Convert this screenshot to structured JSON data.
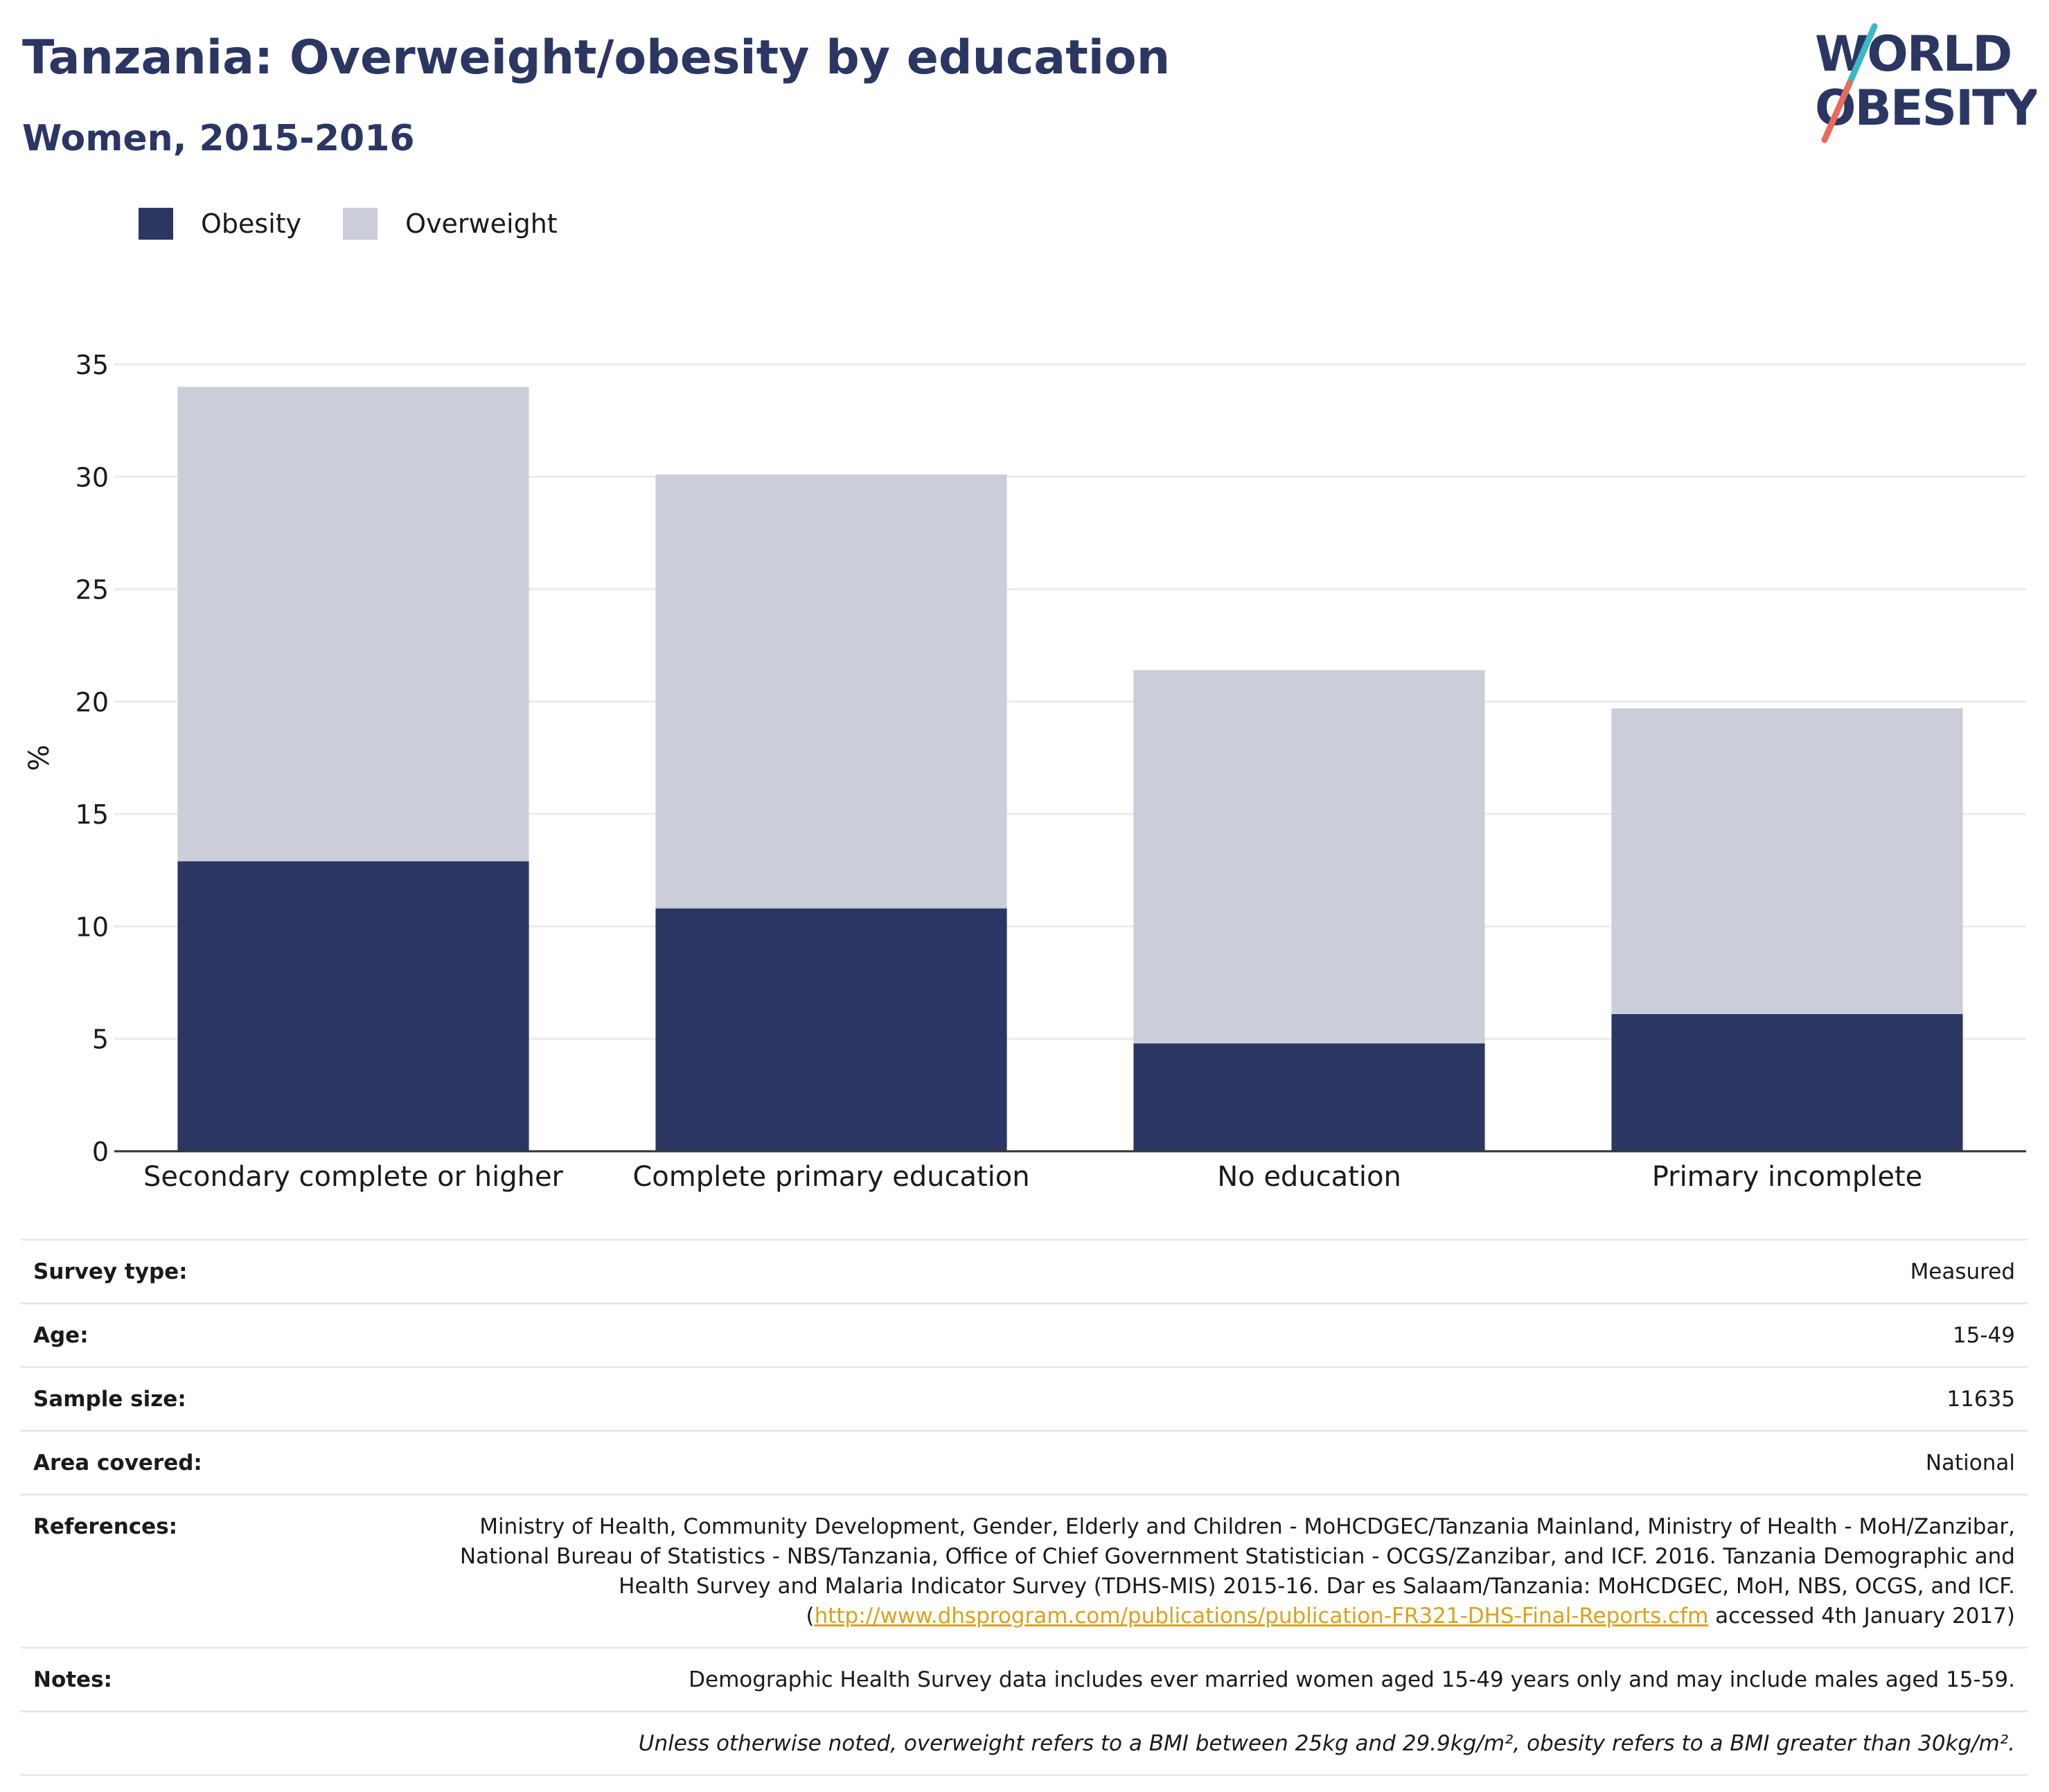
{
  "header": {
    "title": "Tanzania: Overweight/obesity by education",
    "subtitle": "Women, 2015-2016"
  },
  "logo": {
    "line1": "WORLD",
    "line2": "OBESITY"
  },
  "legend": [
    {
      "label": "Obesity",
      "color": "#2b3663"
    },
    {
      "label": "Overweight",
      "color": "#cbcdd9"
    }
  ],
  "chart_data": {
    "type": "bar",
    "stacked": true,
    "categories": [
      "Secondary complete or higher",
      "Complete primary education",
      "No education",
      "Primary incomplete"
    ],
    "series": [
      {
        "name": "Obesity",
        "color": "#2b3663",
        "values": [
          12.9,
          10.8,
          4.8,
          6.1
        ]
      },
      {
        "name": "Overweight",
        "color": "#cbcdd9",
        "values": [
          21.1,
          19.3,
          16.6,
          13.6
        ]
      }
    ],
    "ylabel": "%",
    "ylim": [
      0,
      35
    ],
    "yticks": [
      0,
      5,
      10,
      15,
      20,
      25,
      30,
      35
    ],
    "grid": true
  },
  "info": {
    "survey_type_label": "Survey type:",
    "survey_type_value": "Measured",
    "age_label": "Age:",
    "age_value": "15-49",
    "sample_size_label": "Sample size:",
    "sample_size_value": "11635",
    "area_label": "Area covered:",
    "area_value": "National",
    "references_label": "References:",
    "references_text": "Ministry of Health, Community Development, Gender, Elderly and Children - MoHCDGEC/Tanzania Mainland, Ministry of Health - MoH/Zanzibar, National Bureau of Statistics - NBS/Tanzania, Office of Chief Government Statistician - OCGS/Zanzibar, and ICF. 2016. Tanzania Demographic and Health Survey and Malaria Indicator Survey (TDHS-MIS) 2015-16. Dar es Salaam/Tanzania: MoHCDGEC, MoH, NBS, OCGS, and ICF. (",
    "references_link": "http://www.dhsprogram.com/publications/publication-FR321-DHS-Final-Reports.cfm",
    "references_suffix": " accessed 4th January 2017)",
    "notes_label": "Notes:",
    "notes_value": "Demographic Health Survey data includes ever married women aged 15-49 years only and may include males aged 15-59.",
    "footnote": "Unless otherwise noted, overweight refers to a BMI between 25kg and 29.9kg/m², obesity refers to a BMI greater than 30kg/m²."
  }
}
